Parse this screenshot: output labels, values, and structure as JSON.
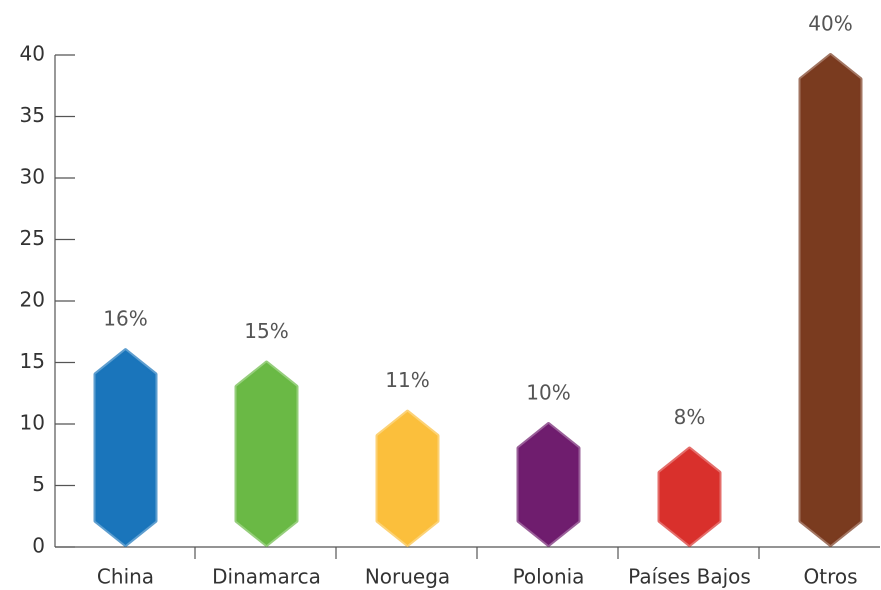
{
  "chart_data": {
    "type": "bar",
    "categories": [
      "China",
      "Dinamarca",
      "Noruega",
      "Polonia",
      "Países Bajos",
      "Otros"
    ],
    "values": [
      16,
      15,
      11,
      10,
      8,
      40
    ],
    "value_labels": [
      "16%",
      "15%",
      "11%",
      "10%",
      "8%",
      "40%"
    ],
    "colors": [
      "#1a75bb",
      "#6ab945",
      "#fbbf3c",
      "#6f1d6e",
      "#d9302c",
      "#7a3b1f"
    ],
    "ylim": [
      0,
      40
    ],
    "yticks": [
      0,
      5,
      10,
      15,
      20,
      25,
      30,
      35,
      40
    ]
  }
}
